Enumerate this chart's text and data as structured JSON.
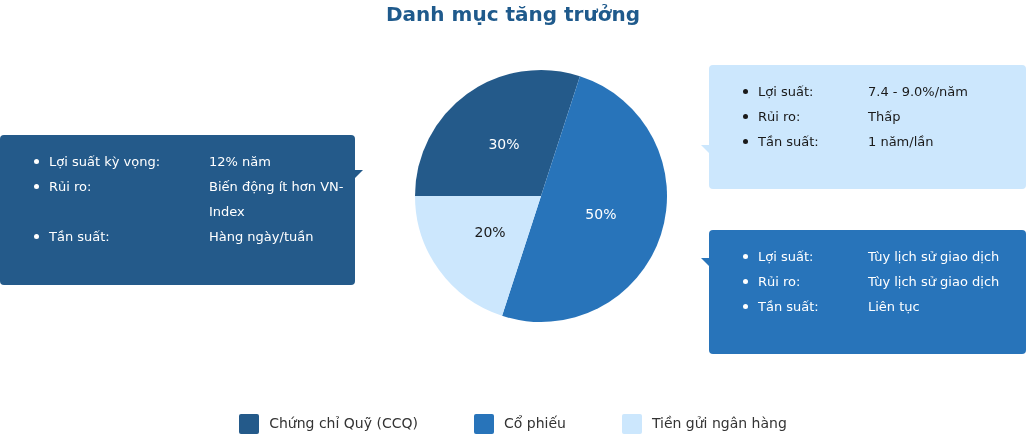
{
  "chart_data": {
    "type": "pie",
    "title": "Danh mục tăng trưởng",
    "categories": [
      "Chứng chỉ Quỹ (CCQ)",
      "Cổ phiếu",
      "Tiền gửi ngân hàng"
    ],
    "values": [
      30,
      50,
      20
    ],
    "colors": [
      "#245a8a",
      "#2874ba",
      "#cce7fd"
    ],
    "value_labels": [
      "30%",
      "50%",
      "20%"
    ],
    "legend": "bottom",
    "annotations": [
      "Lợi suất kỳ vọng:\t12% năm",
      "Rủi ro:\tBiến động ít hơn VN-Index",
      "Tần suất:\tHàng ngày/tuần",
      "Lợi suất:\tTùy lịch sử giao dịch",
      "Rủi ro:\tTùy lịch sử giao dịch",
      "Tần suất:\tLiên tục",
      "Lợi suất:\t7.4 - 9.0%/năm",
      "Rủi ro:\tThấp",
      "Tần suất:\t1 năm/lần"
    ]
  }
}
